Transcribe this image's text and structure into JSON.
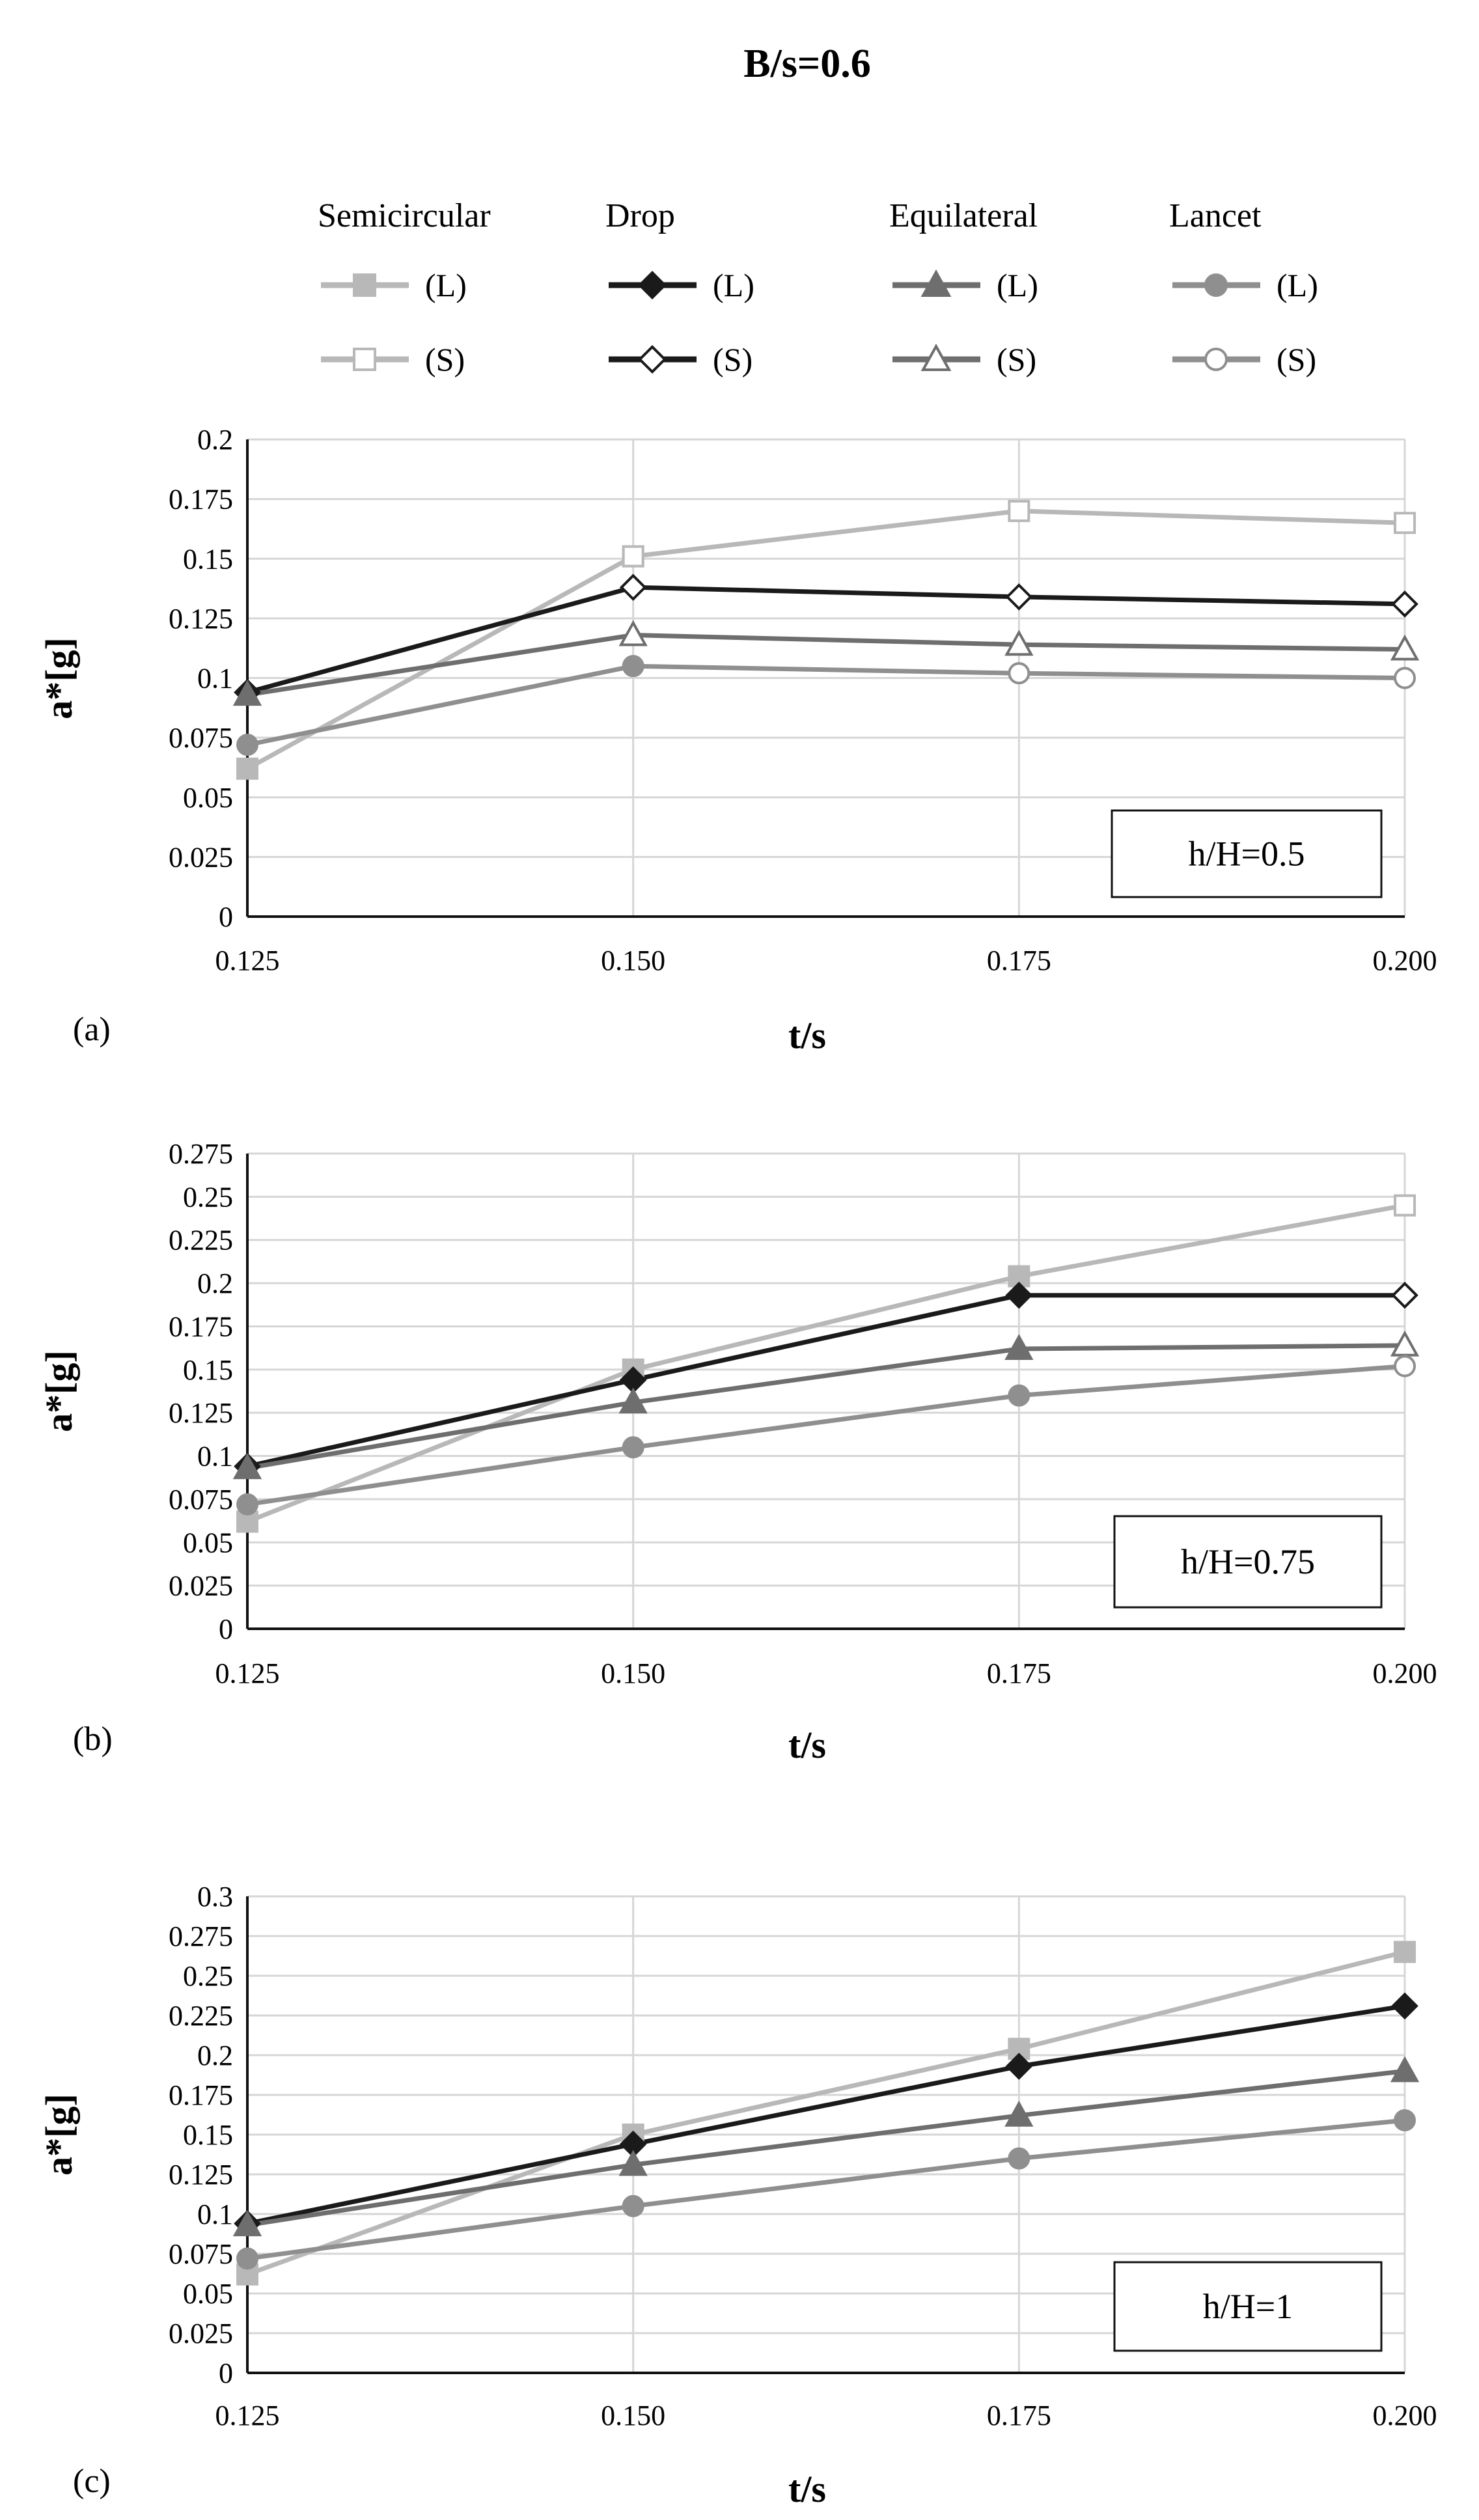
{
  "figure_title": "B/s=0.6",
  "legend": {
    "groups": [
      {
        "name": "Semicircular",
        "color": "#b8b8b8",
        "marker": "square"
      },
      {
        "name": "Drop",
        "color": "#1a1a1a",
        "marker": "diamond"
      },
      {
        "name": "Equilateral",
        "color": "#6e6e6e",
        "marker": "triangle"
      },
      {
        "name": "Lancet",
        "color": "#8f8f8f",
        "marker": "circle"
      }
    ],
    "row_labels": [
      "(L)",
      "(S)"
    ]
  },
  "chart_data": [
    {
      "type": "line",
      "panel_label": "(a)",
      "annotation": "h/H=0.5",
      "title": "",
      "xlabel": "t/s",
      "ylabel": "a*[g]",
      "categories": [
        "0.125",
        "0.150",
        "0.175",
        "0.200"
      ],
      "ylim": [
        0,
        0.2
      ],
      "ytick_step": 0.025,
      "yticks": [
        "0",
        "0.025",
        "0.05",
        "0.075",
        "0.1",
        "0.125",
        "0.15",
        "0.175",
        "0.2"
      ],
      "grid": true,
      "series": [
        {
          "name": "Semicircular (L)",
          "group": 0,
          "filled": true,
          "values": [
            0.062,
            0.151,
            null,
            null
          ]
        },
        {
          "name": "Semicircular (S)",
          "group": 0,
          "filled": false,
          "values": [
            null,
            0.151,
            0.17,
            0.165
          ]
        },
        {
          "name": "Drop (L)",
          "group": 1,
          "filled": true,
          "values": [
            0.094,
            null,
            null,
            null
          ]
        },
        {
          "name": "Drop (S)",
          "group": 1,
          "filled": false,
          "values": [
            null,
            0.138,
            0.134,
            0.131
          ]
        },
        {
          "name": "Equilateral (L)",
          "group": 2,
          "filled": true,
          "values": [
            0.093,
            null,
            null,
            null
          ]
        },
        {
          "name": "Equilateral (S)",
          "group": 2,
          "filled": false,
          "values": [
            null,
            0.118,
            0.114,
            0.112
          ]
        },
        {
          "name": "Lancet (L)",
          "group": 3,
          "filled": true,
          "values": [
            0.072,
            0.105,
            null,
            null
          ]
        },
        {
          "name": "Lancet (S)",
          "group": 3,
          "filled": false,
          "values": [
            null,
            null,
            0.102,
            0.1
          ]
        }
      ]
    },
    {
      "type": "line",
      "panel_label": "(b)",
      "annotation": "h/H=0.75",
      "title": "",
      "xlabel": "t/s",
      "ylabel": "a*[g]",
      "categories": [
        "0.125",
        "0.150",
        "0.175",
        "0.200"
      ],
      "ylim": [
        0,
        0.275
      ],
      "ytick_step": 0.025,
      "yticks": [
        "0",
        "0.025",
        "0.05",
        "0.075",
        "0.1",
        "0.125",
        "0.15",
        "0.175",
        "0.2",
        "0.225",
        "0.25",
        "0.275"
      ],
      "grid": true,
      "series": [
        {
          "name": "Semicircular (L)",
          "group": 0,
          "filled": true,
          "values": [
            0.062,
            0.15,
            0.204,
            null
          ]
        },
        {
          "name": "Semicircular (S)",
          "group": 0,
          "filled": false,
          "values": [
            null,
            null,
            null,
            0.245
          ]
        },
        {
          "name": "Drop (L)",
          "group": 1,
          "filled": true,
          "values": [
            0.094,
            0.144,
            0.193,
            null
          ]
        },
        {
          "name": "Drop (S)",
          "group": 1,
          "filled": false,
          "values": [
            null,
            null,
            null,
            0.193
          ]
        },
        {
          "name": "Equilateral (L)",
          "group": 2,
          "filled": true,
          "values": [
            0.093,
            0.131,
            0.162,
            null
          ]
        },
        {
          "name": "Equilateral (S)",
          "group": 2,
          "filled": false,
          "values": [
            null,
            null,
            null,
            0.164
          ]
        },
        {
          "name": "Lancet (L)",
          "group": 3,
          "filled": true,
          "values": [
            0.072,
            0.105,
            0.135,
            null
          ]
        },
        {
          "name": "Lancet (S)",
          "group": 3,
          "filled": false,
          "values": [
            null,
            null,
            null,
            0.152
          ]
        }
      ]
    },
    {
      "type": "line",
      "panel_label": "(c)",
      "annotation": "h/H=1",
      "title": "",
      "xlabel": "t/s",
      "ylabel": "a*[g]",
      "categories": [
        "0.125",
        "0.150",
        "0.175",
        "0.200"
      ],
      "ylim": [
        0,
        0.3
      ],
      "ytick_step": 0.025,
      "yticks": [
        "0",
        "0.025",
        "0.05",
        "0.075",
        "0.1",
        "0.125",
        "0.15",
        "0.175",
        "0.2",
        "0.225",
        "0.25",
        "0.275",
        "0.3"
      ],
      "grid": true,
      "series": [
        {
          "name": "Semicircular (L)",
          "group": 0,
          "filled": true,
          "values": [
            0.062,
            0.15,
            0.204,
            0.265
          ]
        },
        {
          "name": "Drop (L)",
          "group": 1,
          "filled": true,
          "values": [
            0.094,
            0.144,
            0.193,
            0.231
          ]
        },
        {
          "name": "Equilateral (L)",
          "group": 2,
          "filled": true,
          "values": [
            0.093,
            0.131,
            0.162,
            0.19
          ]
        },
        {
          "name": "Lancet (L)",
          "group": 3,
          "filled": true,
          "values": [
            0.072,
            0.105,
            0.135,
            0.159
          ]
        }
      ]
    }
  ]
}
